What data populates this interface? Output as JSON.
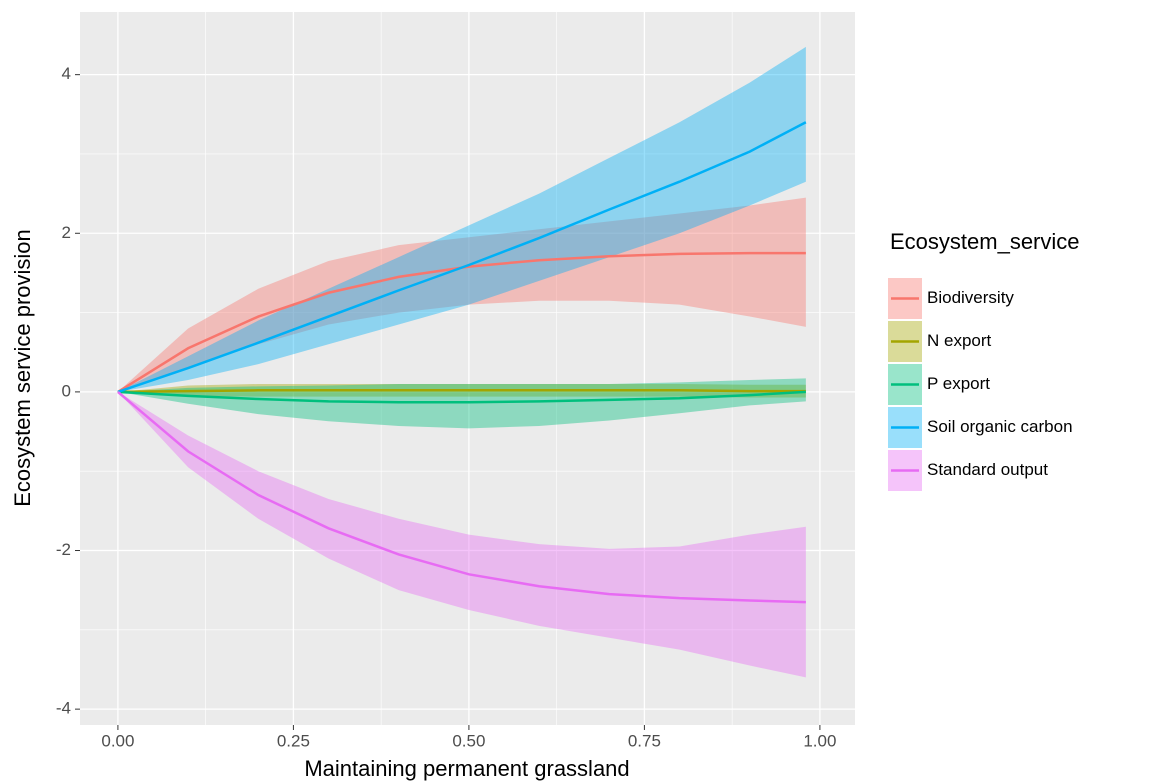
{
  "chart_data": {
    "type": "ribbon-line",
    "x_label": "Maintaining permanent grassland",
    "y_label": "Ecosystem service provision",
    "legend_title": "Ecosystem_service",
    "legend_position": "right",
    "grid": true,
    "x": [
      0,
      0.1,
      0.2,
      0.3,
      0.4,
      0.5,
      0.6,
      0.7,
      0.8,
      0.9,
      0.98
    ],
    "xlim": [
      -0.054,
      1.05
    ],
    "ylim": [
      -4.2,
      4.79
    ],
    "xticks": [
      {
        "value": 0,
        "label": "0.00"
      },
      0.25,
      {
        "value": 0.5,
        "label": "0.50"
      },
      0.75,
      {
        "value": 1,
        "label": "1.00"
      }
    ],
    "yticks": [
      -4,
      -2,
      0,
      2,
      4
    ],
    "band_opacity": 0.4,
    "series": [
      {
        "name": "Biodiversity",
        "color": "#F8766D",
        "values": [
          0,
          0.55,
          0.95,
          1.25,
          1.45,
          1.58,
          1.66,
          1.71,
          1.74,
          1.75,
          1.75
        ],
        "upper": [
          0,
          0.8,
          1.3,
          1.65,
          1.85,
          1.95,
          2.05,
          2.15,
          2.25,
          2.35,
          2.45
        ],
        "lower": [
          0,
          0.3,
          0.6,
          0.85,
          1.0,
          1.1,
          1.15,
          1.15,
          1.1,
          0.95,
          0.82
        ]
      },
      {
        "name": "N export",
        "color": "#A3A500",
        "values": [
          0,
          0.01,
          0.02,
          0.02,
          0.02,
          0.02,
          0.02,
          0.02,
          0.02,
          0.01,
          0.01
        ],
        "upper": [
          0,
          0.08,
          0.1,
          0.1,
          0.1,
          0.1,
          0.1,
          0.1,
          0.1,
          0.09,
          0.09
        ],
        "lower": [
          0,
          -0.05,
          -0.06,
          -0.06,
          -0.06,
          -0.06,
          -0.06,
          -0.06,
          -0.06,
          -0.07,
          -0.07
        ]
      },
      {
        "name": "P export",
        "color": "#00BF7D",
        "values": [
          0,
          -0.05,
          -0.09,
          -0.12,
          -0.13,
          -0.13,
          -0.12,
          -0.1,
          -0.08,
          -0.04,
          0
        ],
        "upper": [
          0,
          0.05,
          0.07,
          0.08,
          0.1,
          0.1,
          0.1,
          0.1,
          0.12,
          0.15,
          0.17
        ],
        "lower": [
          0,
          -0.15,
          -0.28,
          -0.37,
          -0.43,
          -0.46,
          -0.43,
          -0.36,
          -0.27,
          -0.17,
          -0.12
        ]
      },
      {
        "name": "Soil organic carbon",
        "color": "#00B0F6",
        "values": [
          0,
          0.3,
          0.62,
          0.95,
          1.28,
          1.6,
          1.94,
          2.3,
          2.65,
          3.03,
          3.4
        ],
        "upper": [
          0,
          0.45,
          0.9,
          1.3,
          1.7,
          2.1,
          2.5,
          2.95,
          3.4,
          3.9,
          4.35
        ],
        "lower": [
          0,
          0.15,
          0.35,
          0.6,
          0.85,
          1.1,
          1.4,
          1.7,
          2.0,
          2.35,
          2.65
        ]
      },
      {
        "name": "Standard output",
        "color": "#E76BF3",
        "values": [
          0,
          -0.75,
          -1.3,
          -1.72,
          -2.05,
          -2.3,
          -2.45,
          -2.55,
          -2.6,
          -2.63,
          -2.65
        ],
        "upper": [
          0,
          -0.55,
          -1.0,
          -1.35,
          -1.6,
          -1.8,
          -1.92,
          -1.98,
          -1.95,
          -1.8,
          -1.7
        ],
        "lower": [
          0,
          -0.95,
          -1.6,
          -2.1,
          -2.5,
          -2.75,
          -2.95,
          -3.1,
          -3.25,
          -3.45,
          -3.6
        ]
      }
    ]
  }
}
